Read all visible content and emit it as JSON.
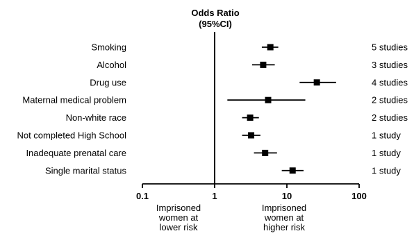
{
  "chart_data": {
    "type": "forest",
    "title": "Odds Ratio",
    "subtitle": "(95%CI)",
    "xscale": "log",
    "xlim": [
      0.1,
      100
    ],
    "xticks": [
      0.1,
      1,
      10,
      100
    ],
    "xtick_labels": [
      "0.1",
      "1",
      "10",
      "100"
    ],
    "reference_line": 1,
    "rows": [
      {
        "label": "Smoking",
        "or": 5.9,
        "lo": 4.5,
        "hi": 7.6,
        "studies": "5 studies"
      },
      {
        "label": "Alcohol",
        "or": 4.7,
        "lo": 3.3,
        "hi": 6.8,
        "studies": "3 studies"
      },
      {
        "label": "Drug use",
        "or": 26,
        "lo": 15,
        "hi": 48,
        "studies": "4 studies"
      },
      {
        "label": "Maternal medical  problem",
        "or": 5.5,
        "lo": 1.5,
        "hi": 18,
        "studies": "2 studies"
      },
      {
        "label": "Non-white race",
        "or": 3.1,
        "lo": 2.4,
        "hi": 4.1,
        "studies": "2 studies"
      },
      {
        "label": "Not completed High School",
        "or": 3.2,
        "lo": 2.4,
        "hi": 4.3,
        "studies": "1 study"
      },
      {
        "label": "Inadequate prenatal care",
        "or": 5.0,
        "lo": 3.5,
        "hi": 7.3,
        "studies": "1 study"
      },
      {
        "label": "Single marital status",
        "or": 12,
        "lo": 8.5,
        "hi": 17,
        "studies": "1 study"
      }
    ],
    "annotations": {
      "lower": [
        "Imprisoned",
        "women at",
        "lower risk"
      ],
      "higher": [
        "Imprisoned",
        "women at",
        "higher risk"
      ]
    }
  }
}
